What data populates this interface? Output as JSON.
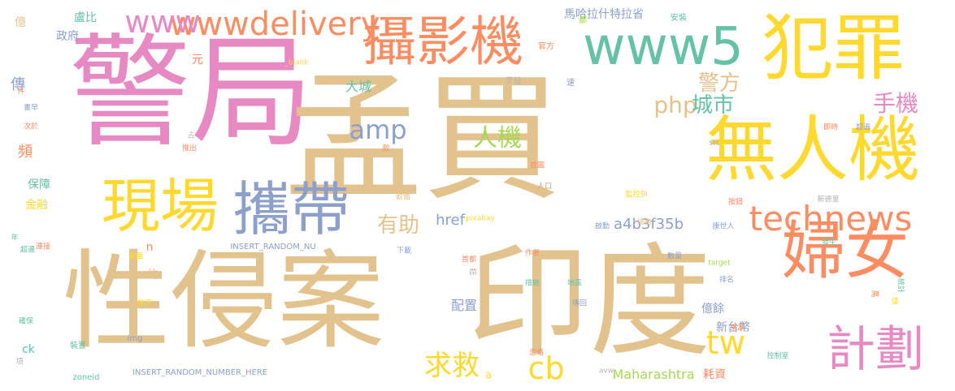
{
  "colors": {
    "tan": "#e3c38d",
    "pink": "#e78ac3",
    "orange": "#fc8d62",
    "yellow": "#ffd92f",
    "blue": "#8da0cb",
    "green": "#66c2a5",
    "lime": "#a6d854",
    "gray": "#b3b3b3"
  },
  "words": [
    {
      "text": "警局",
      "color": "pink"
    },
    {
      "text": "孟買",
      "color": "tan"
    },
    {
      "text": "性侵案",
      "color": "tan"
    },
    {
      "text": "印度",
      "color": "tan"
    },
    {
      "text": "犯罪",
      "color": "yellow"
    },
    {
      "text": "www5",
      "color": "green"
    },
    {
      "text": "攝影機",
      "color": "orange"
    },
    {
      "text": "無人機",
      "color": "yellow"
    },
    {
      "text": "婦女",
      "color": "orange"
    },
    {
      "text": "現場",
      "color": "yellow"
    },
    {
      "text": "攜帶",
      "color": "blue"
    },
    {
      "text": "計劃",
      "color": "pink"
    },
    {
      "text": "technews",
      "color": "orange"
    },
    {
      "text": "wwwdelivery",
      "color": "orange"
    },
    {
      "text": "www",
      "color": "pink"
    },
    {
      "text": "amp",
      "color": "blue"
    },
    {
      "text": "tw",
      "color": "yellow"
    },
    {
      "text": "php",
      "color": "tan"
    },
    {
      "text": "城市",
      "color": "green"
    },
    {
      "text": "手機",
      "color": "pink"
    },
    {
      "text": "警方",
      "color": "tan"
    },
    {
      "text": "人機",
      "color": "lime"
    },
    {
      "text": "有助",
      "color": "tan"
    },
    {
      "text": "求救",
      "color": "yellow"
    },
    {
      "text": "cb",
      "color": "yellow"
    },
    {
      "text": "a4b3f35b",
      "color": "blue"
    },
    {
      "text": "href",
      "color": "blue"
    },
    {
      "text": "Maharashtra",
      "color": "lime"
    },
    {
      "text": "馬哈拉什特拉省",
      "color": "blue"
    },
    {
      "text": "新台幣",
      "color": "blue"
    },
    {
      "text": "億餘",
      "color": "blue"
    },
    {
      "text": "耗資",
      "color": "orange"
    },
    {
      "text": "大城",
      "color": "green"
    },
    {
      "text": "配置",
      "color": "blue"
    },
    {
      "text": "傳",
      "color": "blue"
    },
    {
      "text": "頻",
      "color": "orange"
    },
    {
      "text": "保障",
      "color": "green"
    },
    {
      "text": "金融",
      "color": "yellow"
    },
    {
      "text": "盧比",
      "color": "green"
    },
    {
      "text": "政府",
      "color": "blue"
    },
    {
      "text": "億",
      "color": "tan"
    },
    {
      "text": "元",
      "color": "orange"
    },
    {
      "text": "約",
      "color": "tan"
    },
    {
      "text": "ck",
      "color": "green"
    },
    {
      "text": "n",
      "color": "orange"
    },
    {
      "text": "a",
      "color": "yellow"
    },
    {
      "text": "INSERT_RANDOM_NUMBER_HERE",
      "color": "blue"
    },
    {
      "text": "INSERT_RANDOM_NU",
      "color": "blue"
    },
    {
      "text": "_blank",
      "color": "yellow"
    },
    {
      "text": "歹徒",
      "color": "gray"
    },
    {
      "text": "速",
      "color": "blue"
    },
    {
      "text": "安裝",
      "color": "green"
    },
    {
      "text": "官方",
      "color": "orange"
    },
    {
      "text": "都",
      "color": "lime"
    },
    {
      "text": "即時",
      "color": "orange"
    },
    {
      "text": "超過",
      "color": "blue"
    },
    {
      "text": "src",
      "color": "blue"
    },
    {
      "text": "首圖",
      "color": "orange"
    },
    {
      "text": "人口",
      "color": "orange"
    },
    {
      "text": "監控到",
      "color": "yellow"
    },
    {
      "text": "按鈕",
      "color": "orange"
    },
    {
      "text": "新德里",
      "color": "gray"
    },
    {
      "text": "康世人",
      "color": "blue"
    },
    {
      "text": "總數",
      "color": "tan"
    },
    {
      "text": "啟動",
      "color": "blue"
    },
    {
      "text": "發生",
      "color": "green"
    },
    {
      "text": "作者",
      "color": "orange"
    },
    {
      "text": "target",
      "color": "lime"
    },
    {
      "text": "數量",
      "color": "blue"
    },
    {
      "text": "排名",
      "color": "blue"
    },
    {
      "text": "措施",
      "color": "green"
    },
    {
      "text": "地區",
      "color": "green"
    },
    {
      "text": "統計",
      "color": "green"
    },
    {
      "text": "萬",
      "color": "orange"
    },
    {
      "text": "僅",
      "color": "yellow"
    },
    {
      "text": "傳回",
      "color": "blue"
    },
    {
      "text": "來源",
      "color": "orange"
    },
    {
      "text": "忽略",
      "color": "orange"
    },
    {
      "text": "控制室",
      "color": "green"
    },
    {
      "text": "avw",
      "color": "gray"
    },
    {
      "text": "zoneid",
      "color": "green"
    },
    {
      "text": "img",
      "color": "blue"
    },
    {
      "text": "裝置",
      "color": "green"
    },
    {
      "text": "項",
      "color": "gray"
    },
    {
      "text": "確保",
      "color": "green"
    },
    {
      "text": "按下",
      "color": "yellow"
    },
    {
      "text": "畫面",
      "color": "yellow"
    },
    {
      "text": "連接",
      "color": "orange"
    },
    {
      "text": "超連",
      "color": "green"
    },
    {
      "text": "年",
      "color": "green"
    },
    {
      "text": "下載",
      "color": "blue"
    },
    {
      "text": "首都",
      "color": "orange"
    },
    {
      "text": "鈕",
      "color": "gray"
    },
    {
      "text": "pixabay",
      "color": "yellow"
    },
    {
      "text": "推出",
      "color": "orange"
    },
    {
      "text": "款",
      "color": "orange"
    },
    {
      "text": "占",
      "color": "gray"
    },
    {
      "text": "軟體",
      "color": "tan"
    },
    {
      "text": "件",
      "color": "orange"
    },
    {
      "text": "書早",
      "color": "blue"
    },
    {
      "text": "次於",
      "color": "orange"
    }
  ]
}
